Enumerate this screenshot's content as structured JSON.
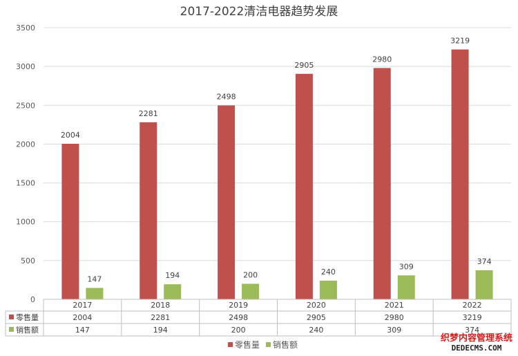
{
  "chart_data": {
    "type": "bar",
    "title": "2017-2022清洁电器趋势发展",
    "categories": [
      "2017",
      "2018",
      "2019",
      "2020",
      "2021",
      "2022"
    ],
    "series": [
      {
        "name": "零售量",
        "color": "#c0504d",
        "values": [
          2004,
          2281,
          2498,
          2905,
          2980,
          3219
        ]
      },
      {
        "name": "销售额",
        "color": "#9bbb59",
        "values": [
          147,
          194,
          200,
          240,
          309,
          374
        ]
      }
    ],
    "ylim": [
      0,
      3500
    ],
    "yticks": [
      0,
      500,
      1000,
      1500,
      2000,
      2500,
      3000,
      3500
    ],
    "grid": true,
    "data_table": true,
    "legend_position": "bottom"
  },
  "watermark": {
    "line1": "织梦内容管理系统",
    "line2": "DEDECMS.COM",
    "line1_color": "#d21f1f",
    "line2_color": "#222222"
  }
}
